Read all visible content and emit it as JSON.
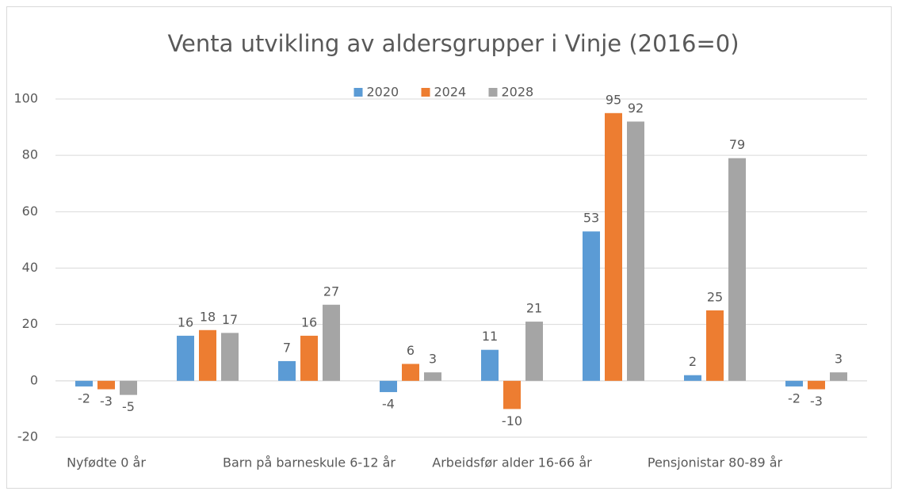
{
  "chart_data": {
    "type": "bar",
    "title": "Venta utvikling av aldersgrupper i Vinje (2016=0)",
    "categories": [
      "Nyfødte 0 år",
      null,
      "Barn på barneskule 6-12 år",
      null,
      "Arbeidsfør alder 16-66 år",
      null,
      "Pensjonistar 80-89 år",
      null
    ],
    "series": [
      {
        "name": "2020",
        "color": "#5b9bd5",
        "values": [
          -2,
          16,
          7,
          -4,
          11,
          53,
          2,
          -2
        ]
      },
      {
        "name": "2024",
        "color": "#ed7d31",
        "values": [
          -3,
          18,
          16,
          6,
          -10,
          95,
          25,
          -3
        ]
      },
      {
        "name": "2028",
        "color": "#a5a5a5",
        "values": [
          -5,
          17,
          27,
          3,
          21,
          92,
          79,
          3
        ]
      }
    ],
    "ylim": [
      -20,
      100
    ],
    "yticks": [
      -20,
      0,
      20,
      40,
      60,
      80,
      100
    ],
    "grid": true,
    "legend": "top"
  }
}
